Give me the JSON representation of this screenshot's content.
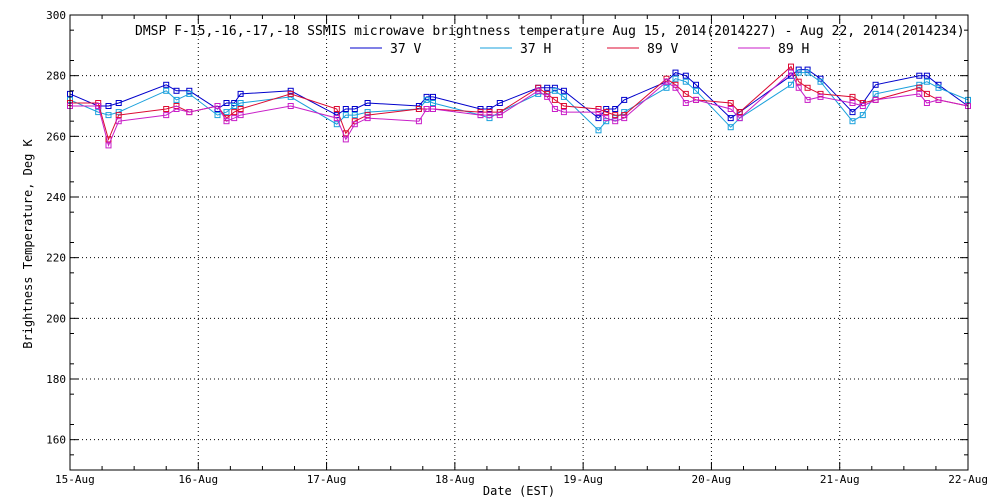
{
  "chart_data": {
    "type": "line",
    "title": "DMSP F-15,-16,-17,-18 SSMIS microwave brightness temperature Aug 15, 2014(2014227) - Aug 22, 2014(2014234)",
    "xlabel": "Date (EST)",
    "ylabel": "Brightness Temperature, Deg K",
    "xlim": [
      "15-Aug",
      "22-Aug"
    ],
    "ylim": [
      150,
      300
    ],
    "yticks": [
      160,
      180,
      200,
      220,
      240,
      260,
      280,
      300
    ],
    "xticks": [
      "15-Aug",
      "16-Aug",
      "17-Aug",
      "18-Aug",
      "19-Aug",
      "20-Aug",
      "21-Aug",
      "22-Aug"
    ],
    "grid": true,
    "legend_position": "top-center",
    "series": [
      {
        "name": "37 V",
        "color": "#0000cc",
        "points": [
          [
            15.0,
            274
          ],
          [
            15.22,
            270
          ],
          [
            15.3,
            270
          ],
          [
            15.38,
            271
          ],
          [
            15.75,
            277
          ],
          [
            15.83,
            275
          ],
          [
            15.93,
            275
          ],
          [
            16.15,
            269
          ],
          [
            16.22,
            271
          ],
          [
            16.28,
            271
          ],
          [
            16.33,
            274
          ],
          [
            16.72,
            275
          ],
          [
            17.08,
            267
          ],
          [
            17.15,
            269
          ],
          [
            17.22,
            269
          ],
          [
            17.32,
            271
          ],
          [
            17.72,
            270
          ],
          [
            17.78,
            273
          ],
          [
            17.83,
            273
          ],
          [
            18.2,
            269
          ],
          [
            18.27,
            269
          ],
          [
            18.35,
            271
          ],
          [
            18.65,
            276
          ],
          [
            18.72,
            276
          ],
          [
            18.78,
            276
          ],
          [
            18.85,
            275
          ],
          [
            19.12,
            266
          ],
          [
            19.18,
            269
          ],
          [
            19.25,
            269
          ],
          [
            19.32,
            272
          ],
          [
            19.65,
            278
          ],
          [
            19.72,
            281
          ],
          [
            19.8,
            280
          ],
          [
            19.88,
            277
          ],
          [
            20.15,
            266
          ],
          [
            20.22,
            268
          ],
          [
            20.62,
            280
          ],
          [
            20.68,
            282
          ],
          [
            20.75,
            282
          ],
          [
            20.85,
            279
          ],
          [
            21.1,
            268
          ],
          [
            21.18,
            271
          ],
          [
            21.28,
            277
          ],
          [
            21.62,
            280
          ],
          [
            21.68,
            280
          ],
          [
            21.77,
            277
          ],
          [
            22.0,
            270
          ]
        ]
      },
      {
        "name": "37 H",
        "color": "#1aa0dc",
        "points": [
          [
            15.0,
            272
          ],
          [
            15.22,
            268
          ],
          [
            15.3,
            267
          ],
          [
            15.38,
            268
          ],
          [
            15.75,
            275
          ],
          [
            15.83,
            272
          ],
          [
            15.93,
            274
          ],
          [
            16.15,
            267
          ],
          [
            16.22,
            268
          ],
          [
            16.28,
            270
          ],
          [
            16.33,
            271
          ],
          [
            16.72,
            273
          ],
          [
            17.08,
            264
          ],
          [
            17.15,
            267
          ],
          [
            17.22,
            267
          ],
          [
            17.32,
            268
          ],
          [
            17.72,
            269
          ],
          [
            17.78,
            272
          ],
          [
            17.83,
            271
          ],
          [
            18.2,
            267
          ],
          [
            18.27,
            266
          ],
          [
            18.35,
            268
          ],
          [
            18.65,
            274
          ],
          [
            18.72,
            274
          ],
          [
            18.78,
            275
          ],
          [
            18.85,
            273
          ],
          [
            19.12,
            262
          ],
          [
            19.18,
            265
          ],
          [
            19.25,
            266
          ],
          [
            19.32,
            268
          ],
          [
            19.65,
            276
          ],
          [
            19.72,
            279
          ],
          [
            19.8,
            278
          ],
          [
            19.88,
            275
          ],
          [
            20.15,
            263
          ],
          [
            20.22,
            266
          ],
          [
            20.62,
            277
          ],
          [
            20.68,
            281
          ],
          [
            20.75,
            281
          ],
          [
            20.85,
            278
          ],
          [
            21.1,
            265
          ],
          [
            21.18,
            267
          ],
          [
            21.28,
            274
          ],
          [
            21.62,
            277
          ],
          [
            21.68,
            278
          ],
          [
            21.77,
            276
          ],
          [
            22.0,
            272
          ]
        ]
      },
      {
        "name": "89 V",
        "color": "#dc0a32",
        "points": [
          [
            15.0,
            271
          ],
          [
            15.22,
            271
          ],
          [
            15.3,
            259
          ],
          [
            15.38,
            267
          ],
          [
            15.75,
            269
          ],
          [
            15.83,
            270
          ],
          [
            15.93,
            268
          ],
          [
            16.15,
            270
          ],
          [
            16.22,
            266
          ],
          [
            16.28,
            268
          ],
          [
            16.33,
            269
          ],
          [
            16.72,
            274
          ],
          [
            17.08,
            269
          ],
          [
            17.15,
            261
          ],
          [
            17.22,
            265
          ],
          [
            17.32,
            267
          ],
          [
            17.72,
            269
          ],
          [
            17.78,
            269
          ],
          [
            17.83,
            269
          ],
          [
            18.2,
            268
          ],
          [
            18.27,
            268
          ],
          [
            18.35,
            268
          ],
          [
            18.65,
            276
          ],
          [
            18.72,
            274
          ],
          [
            18.78,
            272
          ],
          [
            18.85,
            270
          ],
          [
            19.12,
            269
          ],
          [
            19.18,
            268
          ],
          [
            19.25,
            267
          ],
          [
            19.32,
            267
          ],
          [
            19.65,
            279
          ],
          [
            19.72,
            277
          ],
          [
            19.8,
            274
          ],
          [
            19.88,
            272
          ],
          [
            20.15,
            271
          ],
          [
            20.22,
            268
          ],
          [
            20.62,
            283
          ],
          [
            20.68,
            278
          ],
          [
            20.75,
            276
          ],
          [
            20.85,
            274
          ],
          [
            21.1,
            273
          ],
          [
            21.18,
            271
          ],
          [
            21.28,
            272
          ],
          [
            21.62,
            276
          ],
          [
            21.68,
            274
          ],
          [
            21.77,
            272
          ],
          [
            22.0,
            270
          ]
        ]
      },
      {
        "name": "89 H",
        "color": "#c81ec8",
        "points": [
          [
            15.0,
            270
          ],
          [
            15.22,
            270
          ],
          [
            15.3,
            257
          ],
          [
            15.38,
            265
          ],
          [
            15.75,
            267
          ],
          [
            15.83,
            269
          ],
          [
            15.93,
            268
          ],
          [
            16.15,
            270
          ],
          [
            16.22,
            265
          ],
          [
            16.28,
            266
          ],
          [
            16.33,
            267
          ],
          [
            16.72,
            270
          ],
          [
            17.08,
            266
          ],
          [
            17.15,
            259
          ],
          [
            17.22,
            264
          ],
          [
            17.32,
            266
          ],
          [
            17.72,
            265
          ],
          [
            17.78,
            269
          ],
          [
            17.83,
            269
          ],
          [
            18.2,
            267
          ],
          [
            18.27,
            267
          ],
          [
            18.35,
            267
          ],
          [
            18.65,
            275
          ],
          [
            18.72,
            273
          ],
          [
            18.78,
            269
          ],
          [
            18.85,
            268
          ],
          [
            19.12,
            268
          ],
          [
            19.18,
            266
          ],
          [
            19.25,
            265
          ],
          [
            19.32,
            266
          ],
          [
            19.65,
            278
          ],
          [
            19.72,
            276
          ],
          [
            19.8,
            271
          ],
          [
            19.88,
            272
          ],
          [
            20.15,
            269
          ],
          [
            20.22,
            266
          ],
          [
            20.62,
            281
          ],
          [
            20.68,
            276
          ],
          [
            20.75,
            272
          ],
          [
            20.85,
            273
          ],
          [
            21.1,
            271
          ],
          [
            21.18,
            270
          ],
          [
            21.28,
            272
          ],
          [
            21.62,
            274
          ],
          [
            21.68,
            271
          ],
          [
            21.77,
            272
          ],
          [
            22.0,
            270
          ]
        ]
      }
    ]
  }
}
